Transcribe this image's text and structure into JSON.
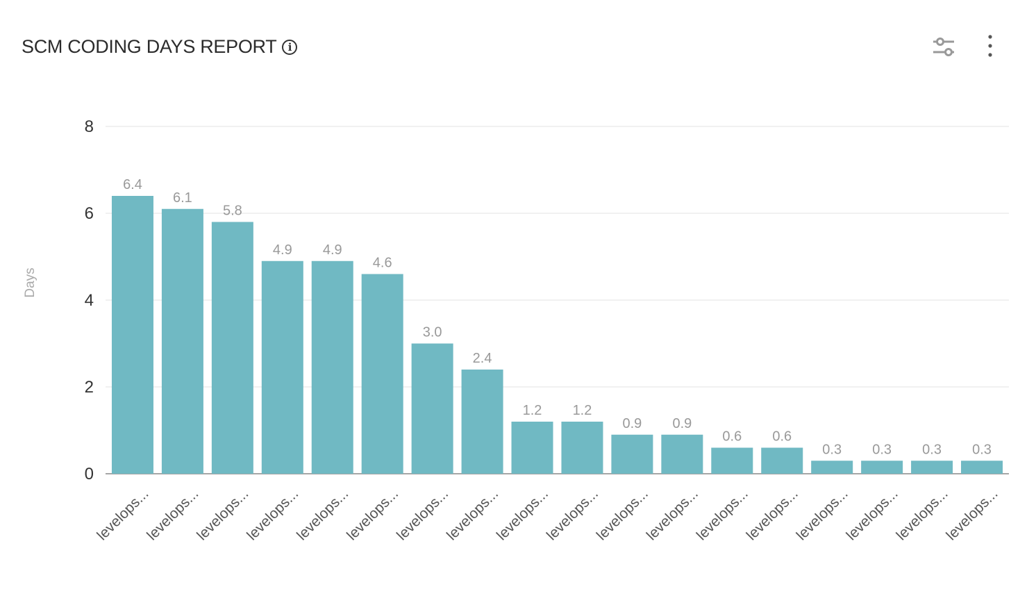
{
  "header": {
    "title": "SCM CODING DAYS REPORT",
    "info_icon": "info-icon",
    "settings_icon": "sliders-icon",
    "menu_icon": "more-vertical-icon"
  },
  "chart_data": {
    "type": "bar",
    "title": "SCM CODING DAYS REPORT",
    "xlabel": "",
    "ylabel": "Days",
    "ylim": [
      0,
      8
    ],
    "yticks": [
      0,
      2,
      4,
      6,
      8
    ],
    "grid": true,
    "bar_color": "#70b9c3",
    "categories": [
      "levelops...",
      "levelops...",
      "levelops...",
      "levelops...",
      "levelops...",
      "levelops...",
      "levelops...",
      "levelops...",
      "levelops...",
      "levelops...",
      "levelops...",
      "levelops...",
      "levelops...",
      "levelops...",
      "levelops...",
      "levelops...",
      "levelops...",
      "levelops..."
    ],
    "values": [
      6.4,
      6.1,
      5.8,
      4.9,
      4.9,
      4.6,
      3.0,
      2.4,
      1.2,
      1.2,
      0.9,
      0.9,
      0.6,
      0.6,
      0.3,
      0.3,
      0.3,
      0.3
    ]
  }
}
